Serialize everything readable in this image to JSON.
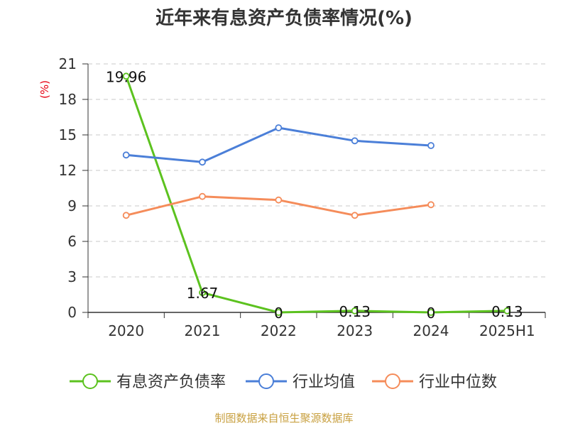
{
  "chart_data": {
    "type": "line",
    "title": "近年来有息资产负债率情况(%)",
    "ylabel": "(%)",
    "xlabel": "",
    "categories": [
      "2020",
      "2021",
      "2022",
      "2023",
      "2024",
      "2025H1"
    ],
    "ylim": [
      0,
      21
    ],
    "yticks": [
      0,
      3,
      6,
      9,
      12,
      15,
      18,
      21
    ],
    "grid": true,
    "legend_position": "bottom",
    "series": [
      {
        "name": "有息资产负债率",
        "color": "#5cc21f",
        "values": [
          19.96,
          1.67,
          0,
          0.13,
          0,
          0.13
        ],
        "labels": [
          "19.96",
          "1.67",
          "0",
          "0.13",
          "0",
          "0.13"
        ]
      },
      {
        "name": "行业均值",
        "color": "#4b7fd8",
        "values": [
          13.3,
          12.7,
          15.6,
          14.5,
          14.1,
          null
        ],
        "labels": null
      },
      {
        "name": "行业中位数",
        "color": "#f58c5a",
        "values": [
          8.2,
          9.8,
          9.5,
          8.2,
          9.1,
          null
        ],
        "labels": null
      }
    ]
  },
  "footer": {
    "source": "制图数据来自恒生聚源数据库"
  }
}
